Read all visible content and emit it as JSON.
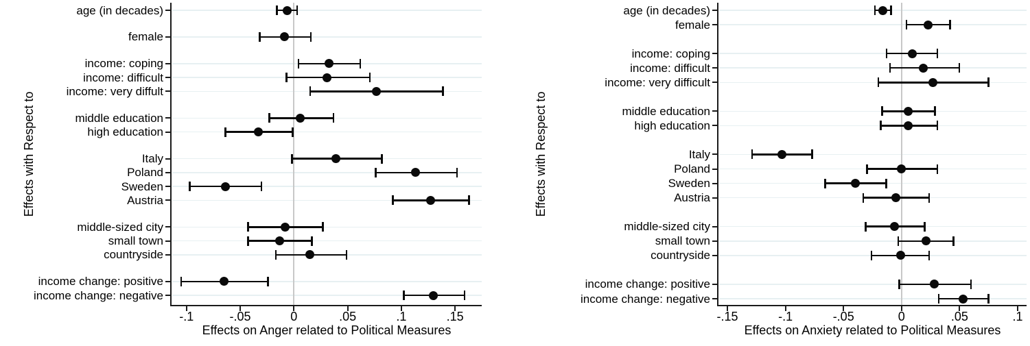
{
  "page": {
    "background": "#ffffff"
  },
  "colors": {
    "marker": "#0a0a0a",
    "ci": "#0a0a0a",
    "grid": "#e7f0f2",
    "zero_line": "#c8c8c8",
    "axis": "#1a1a1a",
    "text": "#000000"
  },
  "chart_data": [
    {
      "type": "dot-whisker",
      "title": "",
      "xlabel": "Effects on Anger related to Political Measures",
      "ylabel": "Effects with Respect to",
      "xlim": [
        -0.1139,
        0.1748
      ],
      "x_ticks": [
        -0.1,
        -0.05,
        0,
        0.05,
        0.1,
        0.15
      ],
      "x_tick_labels": [
        "-.1",
        "-.05",
        "0",
        ".05",
        ".1",
        ".15"
      ],
      "grid": true,
      "zero_reference_line": 0,
      "legend": "none",
      "rows": [
        {
          "label": "age (in decades)",
          "group": 0,
          "est": -0.006,
          "ci_low": -0.016,
          "ci_high": 0.003
        },
        {
          "label": "female",
          "group": 1,
          "est": -0.009,
          "ci_low": -0.032,
          "ci_high": 0.016
        },
        {
          "label": "income: coping",
          "group": 2,
          "est": 0.033,
          "ci_low": 0.004,
          "ci_high": 0.062
        },
        {
          "label": "income: difficult",
          "group": 2,
          "est": 0.031,
          "ci_low": -0.007,
          "ci_high": 0.071
        },
        {
          "label": "income: very diffult",
          "group": 2,
          "est": 0.077,
          "ci_low": 0.015,
          "ci_high": 0.139
        },
        {
          "label": "middle education",
          "group": 3,
          "est": 0.006,
          "ci_low": -0.023,
          "ci_high": 0.037
        },
        {
          "label": "high education",
          "group": 3,
          "est": -0.033,
          "ci_low": -0.064,
          "ci_high": -0.001
        },
        {
          "label": "Italy",
          "group": 4,
          "est": 0.039,
          "ci_low": -0.002,
          "ci_high": 0.082
        },
        {
          "label": "Poland",
          "group": 4,
          "est": 0.113,
          "ci_low": 0.076,
          "ci_high": 0.152
        },
        {
          "label": "Sweden",
          "group": 4,
          "est": -0.064,
          "ci_low": -0.097,
          "ci_high": -0.03
        },
        {
          "label": "Austria",
          "group": 4,
          "est": 0.127,
          "ci_low": 0.092,
          "ci_high": 0.163
        },
        {
          "label": "middle-sized city",
          "group": 5,
          "est": -0.008,
          "ci_low": -0.043,
          "ci_high": 0.027
        },
        {
          "label": "small town",
          "group": 5,
          "est": -0.013,
          "ci_low": -0.043,
          "ci_high": 0.017
        },
        {
          "label": "countryside",
          "group": 5,
          "est": 0.015,
          "ci_low": -0.017,
          "ci_high": 0.049
        },
        {
          "label": "income change: positive",
          "group": 6,
          "est": -0.065,
          "ci_low": -0.105,
          "ci_high": -0.024
        },
        {
          "label": "income change: negative",
          "group": 6,
          "est": 0.13,
          "ci_low": 0.102,
          "ci_high": 0.159
        }
      ]
    },
    {
      "type": "dot-whisker",
      "title": "",
      "xlabel": "Effects on Anxiety related to Political Measures",
      "ylabel": "Effects with Respect to",
      "xlim": [
        -0.1577,
        0.1077
      ],
      "x_ticks": [
        -0.15,
        -0.1,
        -0.05,
        0,
        0.05,
        0.1
      ],
      "x_tick_labels": [
        "-.15",
        "-.1",
        "-.05",
        "0",
        ".05",
        ".1"
      ],
      "grid": true,
      "zero_reference_line": 0,
      "legend": "none",
      "rows": [
        {
          "label": "age (in decades)",
          "group": 0,
          "est": -0.016,
          "ci_low": -0.023,
          "ci_high": -0.009
        },
        {
          "label": "female",
          "group": 0,
          "est": 0.023,
          "ci_low": 0.004,
          "ci_high": 0.042
        },
        {
          "label": "income: coping",
          "group": 1,
          "est": 0.009,
          "ci_low": -0.013,
          "ci_high": 0.031
        },
        {
          "label": "income: difficult",
          "group": 1,
          "est": 0.019,
          "ci_low": -0.01,
          "ci_high": 0.05
        },
        {
          "label": "income: very difficult",
          "group": 1,
          "est": 0.027,
          "ci_low": -0.02,
          "ci_high": 0.075
        },
        {
          "label": "middle education",
          "group": 2,
          "est": 0.006,
          "ci_low": -0.017,
          "ci_high": 0.029
        },
        {
          "label": "high education",
          "group": 2,
          "est": 0.006,
          "ci_low": -0.018,
          "ci_high": 0.031
        },
        {
          "label": "Italy",
          "group": 3,
          "est": -0.103,
          "ci_low": -0.129,
          "ci_high": -0.077
        },
        {
          "label": "Poland",
          "group": 3,
          "est": 0.0,
          "ci_low": -0.03,
          "ci_high": 0.031
        },
        {
          "label": "Sweden",
          "group": 3,
          "est": -0.04,
          "ci_low": -0.066,
          "ci_high": -0.013
        },
        {
          "label": "Austria",
          "group": 3,
          "est": -0.005,
          "ci_low": -0.033,
          "ci_high": 0.024
        },
        {
          "label": "middle-sized city",
          "group": 4,
          "est": -0.006,
          "ci_low": -0.031,
          "ci_high": 0.02
        },
        {
          "label": "small town",
          "group": 4,
          "est": 0.021,
          "ci_low": -0.003,
          "ci_high": 0.045
        },
        {
          "label": "countryside",
          "group": 4,
          "est": -0.001,
          "ci_low": -0.026,
          "ci_high": 0.024
        },
        {
          "label": "income change: positive",
          "group": 5,
          "est": 0.028,
          "ci_low": -0.002,
          "ci_high": 0.06
        },
        {
          "label": "income change: negative",
          "group": 5,
          "est": 0.053,
          "ci_low": 0.032,
          "ci_high": 0.075
        }
      ]
    }
  ]
}
